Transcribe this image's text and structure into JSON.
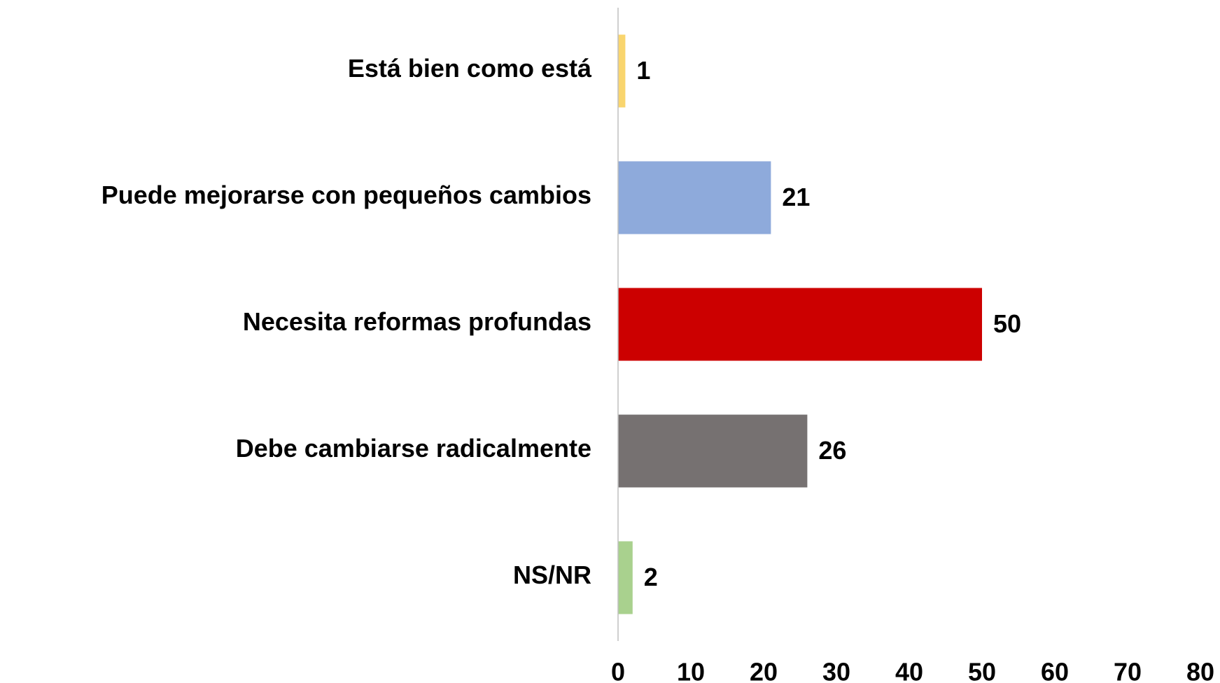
{
  "chart_data": {
    "type": "hbar",
    "categories": [
      "Está bien como está",
      "Puede mejorarse con pequeños cambios",
      "Necesita reformas profundas",
      "Debe cambiarse radicalmente",
      "NS/NR"
    ],
    "values": [
      1,
      21,
      50,
      26,
      2
    ],
    "colors": [
      "#f9d56e",
      "#8eaadb",
      "#cc0000",
      "#767171",
      "#a9d18e"
    ],
    "xlim": [
      0,
      80
    ],
    "xticks": [
      0,
      10,
      20,
      30,
      40,
      50,
      60,
      70,
      80
    ],
    "grid": false
  }
}
